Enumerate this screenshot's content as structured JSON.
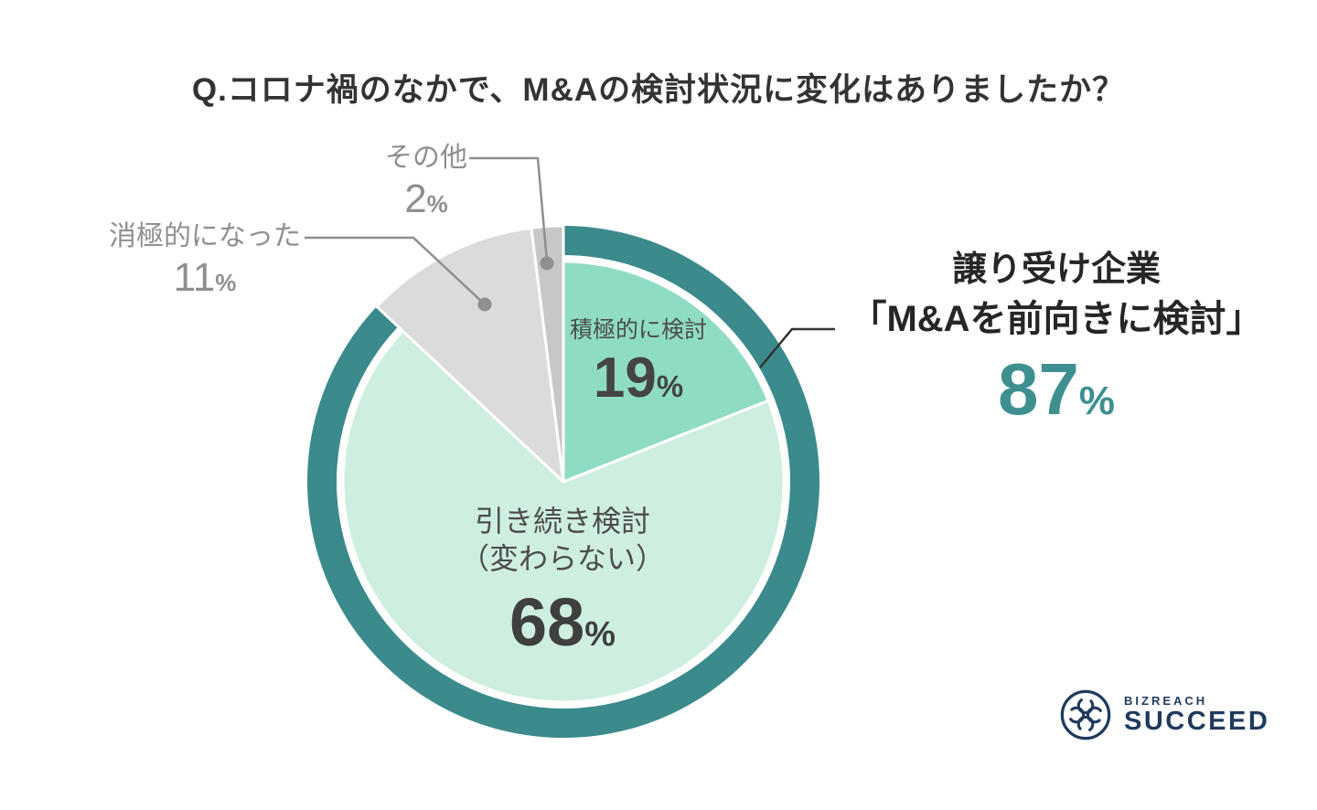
{
  "title": "Q.コロナ禍のなかで、M&Aの検討状況に変化はありましたか？",
  "chart_data": {
    "type": "pie",
    "title": "Q.コロナ禍のなかで、M&Aの検討状況に変化はありましたか？",
    "direction": "clockwise",
    "start_angle_deg": 0,
    "legend_position": "labels-on-chart",
    "slices": [
      {
        "label": "積極的に検討",
        "value": 19,
        "unit": "%",
        "color": "#8FDCC4",
        "label_position": "inside"
      },
      {
        "label": "引き続き検討（変わらない）",
        "value": 68,
        "unit": "%",
        "color": "#CEEEDF",
        "label_position": "inside"
      },
      {
        "label": "消極的になった",
        "value": 11,
        "unit": "%",
        "color": "#DBDBDC",
        "label_position": "outside"
      },
      {
        "label": "その他",
        "value": 2,
        "unit": "%",
        "color": "#C7C7C8",
        "label_position": "outside"
      }
    ],
    "inside_label_68": {
      "line1": "引き続き検討",
      "line2": "（変わらない）"
    },
    "highlight_ring": {
      "value": 87,
      "color": "#3B8A8C",
      "covers": [
        "積極的に検討",
        "引き続き検討（変わらない）"
      ]
    },
    "annotation": {
      "line1": "譲り受け企業",
      "line2": "「M&Aを前向きに検討」",
      "value": 87,
      "unit": "%",
      "value_color": "#3E8F90"
    }
  },
  "logo": {
    "brand": "BIZREACH",
    "product": "SUCCEED",
    "color": "#1E3A5E"
  },
  "colors": {
    "background": "#FFFFFF",
    "title_text": "#333333",
    "outside_label_text": "#8F8F8F",
    "inside_label_text": "#4D4D4D",
    "leader_line_gray": "#8F8F8F",
    "leader_line_dark": "#333333",
    "accent_teal": "#3B8A8C"
  }
}
